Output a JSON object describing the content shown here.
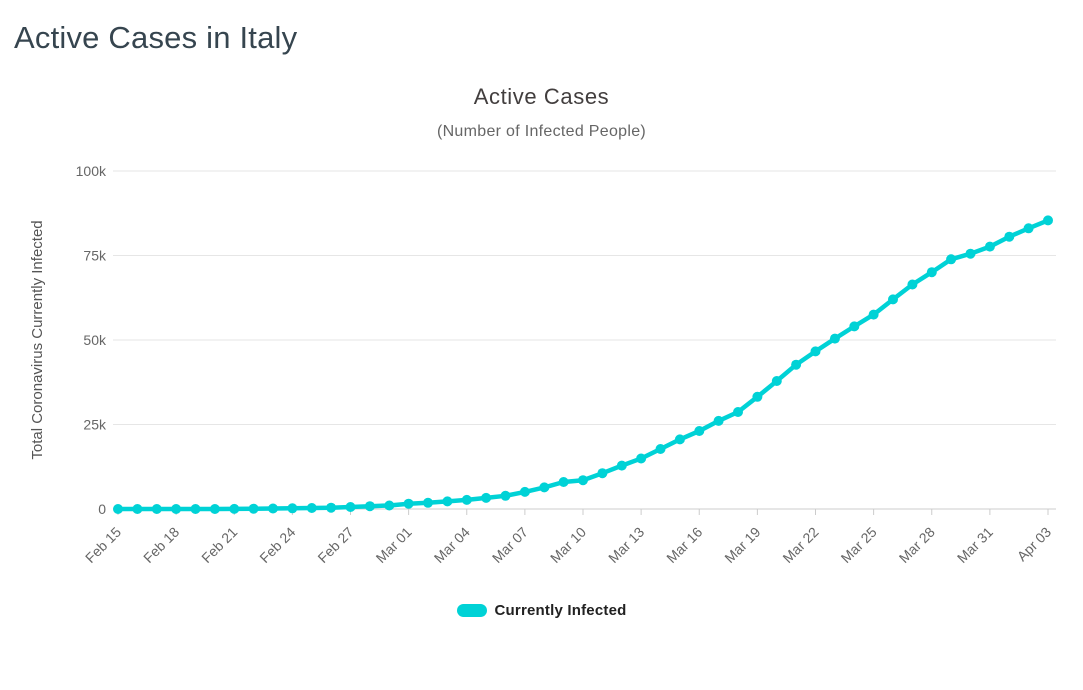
{
  "page": {
    "title": "Active Cases in Italy"
  },
  "chart": {
    "title": "Active Cases",
    "subtitle": "(Number of Infected People)",
    "ylabel": "Total Coronavirus Currently Infected",
    "legend_label": "Currently Infected",
    "line_color": "#00d2d6",
    "grid_color": "#e6e6e6",
    "axis_line_color": "#cccccc",
    "tick_text_color": "#666666"
  },
  "chart_data": {
    "type": "line",
    "title": "Active Cases",
    "subtitle": "(Number of Infected People)",
    "xlabel": "",
    "ylabel": "Total Coronavirus Currently Infected",
    "ylim": [
      0,
      100000
    ],
    "yticks": [
      0,
      25000,
      50000,
      75000,
      100000
    ],
    "ytick_labels": [
      "0",
      "25k",
      "50k",
      "75k",
      "100k"
    ],
    "grid": true,
    "legend_position": "bottom",
    "x_label_every": 3,
    "categories": [
      "Feb 15",
      "Feb 16",
      "Feb 17",
      "Feb 18",
      "Feb 19",
      "Feb 20",
      "Feb 21",
      "Feb 22",
      "Feb 23",
      "Feb 24",
      "Feb 25",
      "Feb 26",
      "Feb 27",
      "Feb 28",
      "Feb 29",
      "Mar 01",
      "Mar 02",
      "Mar 03",
      "Mar 04",
      "Mar 05",
      "Mar 06",
      "Mar 07",
      "Mar 08",
      "Mar 09",
      "Mar 10",
      "Mar 11",
      "Mar 12",
      "Mar 13",
      "Mar 14",
      "Mar 15",
      "Mar 16",
      "Mar 17",
      "Mar 18",
      "Mar 19",
      "Mar 20",
      "Mar 21",
      "Mar 22",
      "Mar 23",
      "Mar 24",
      "Mar 25",
      "Mar 26",
      "Mar 27",
      "Mar 28",
      "Mar 29",
      "Mar 30",
      "Mar 31",
      "Apr 01",
      "Apr 02",
      "Apr 03"
    ],
    "series": [
      {
        "name": "Currently Infected",
        "color": "#00d2d6",
        "values": [
          3,
          3,
          3,
          3,
          3,
          3,
          19,
          76,
          149,
          221,
          310,
          385,
          588,
          821,
          1049,
          1577,
          1835,
          2263,
          2706,
          3296,
          3916,
          5061,
          6387,
          7985,
          8514,
          10590,
          12839,
          14955,
          17750,
          20603,
          23073,
          26062,
          28710,
          33190,
          37860,
          42681,
          46638,
          50418,
          54030,
          57521,
          62013,
          66414,
          70065,
          73880,
          75528,
          77635,
          80572,
          83049,
          85388
        ]
      }
    ]
  }
}
